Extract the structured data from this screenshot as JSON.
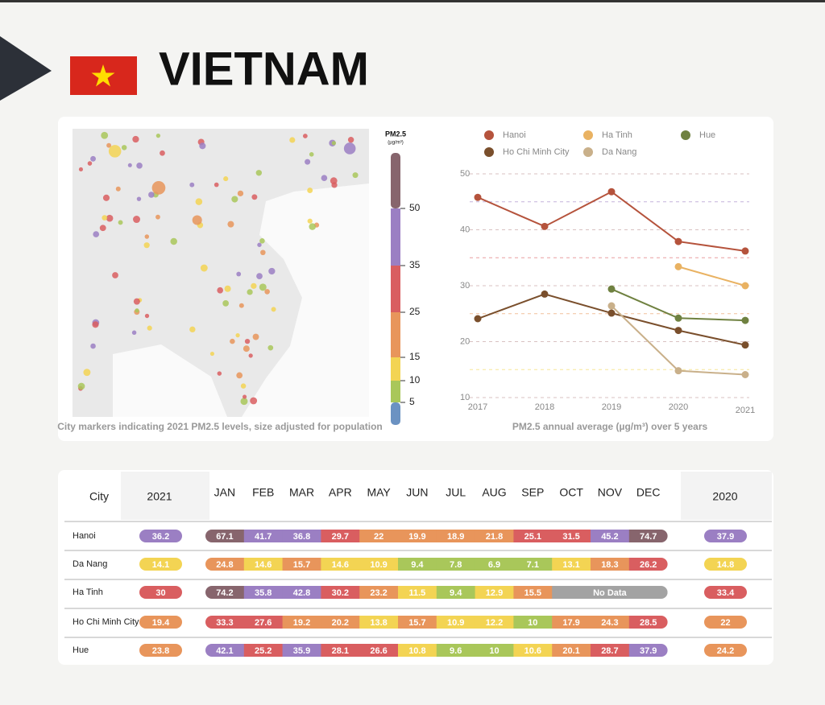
{
  "title": "VIETNAM",
  "map": {
    "caption": "City markers indicating 2021 PM2.5 levels, size adjusted for population",
    "legend": {
      "title": "PM2.5",
      "unit": "(µg/m³)",
      "ticks": [
        5,
        10,
        15,
        25,
        35,
        50
      ],
      "colors": [
        "#6b92c2",
        "#a9c75a",
        "#f3d453",
        "#e8955b",
        "#d95e60",
        "#9b7fc3",
        "#87656d"
      ]
    }
  },
  "chart_data": {
    "type": "line",
    "caption": "PM2.5 annual average (µg/m³) over 5 years",
    "x": [
      2017,
      2018,
      2019,
      2020,
      2021
    ],
    "xticks": [
      2017,
      2018,
      2019,
      2020,
      2021
    ],
    "ylim": [
      10,
      50
    ],
    "yticks": [
      10,
      20,
      30,
      40,
      50
    ],
    "minor_yticks": [
      15,
      25,
      35,
      45
    ],
    "grid": true,
    "series": [
      {
        "name": "Hanoi",
        "color": "#b5533c",
        "values": [
          45.8,
          40.6,
          46.8,
          37.9,
          36.2
        ]
      },
      {
        "name": "Ha Tinh",
        "color": "#e9b262",
        "values": [
          null,
          null,
          null,
          33.4,
          30
        ]
      },
      {
        "name": "Hue",
        "color": "#6f8140",
        "values": [
          null,
          null,
          29.4,
          24.2,
          23.8
        ]
      },
      {
        "name": "Ho Chi Minh City",
        "color": "#7a4f2c",
        "values": [
          24.1,
          28.5,
          25.1,
          22,
          19.4
        ]
      },
      {
        "name": "Da Nang",
        "color": "#c9b08a",
        "values": [
          null,
          null,
          26.4,
          14.8,
          14.1
        ]
      }
    ]
  },
  "table": {
    "headers": [
      "City",
      "2021",
      "JAN",
      "FEB",
      "MAR",
      "APR",
      "MAY",
      "JUN",
      "JUL",
      "AUG",
      "SEP",
      "OCT",
      "NOV",
      "DEC",
      "2020"
    ],
    "no_data_label": "No Data",
    "rows": [
      {
        "city": "Hanoi",
        "y2021": 36.2,
        "months": [
          67.1,
          41.7,
          36.8,
          29.7,
          22,
          19.9,
          18.9,
          21.8,
          25.1,
          31.5,
          45.2,
          74.7
        ],
        "y2020": 37.9
      },
      {
        "city": "Da Nang",
        "y2021": 14.1,
        "months": [
          24.8,
          14.6,
          15.7,
          14.6,
          10.9,
          9.4,
          7.8,
          6.9,
          7.1,
          13.1,
          18.3,
          26.2
        ],
        "y2020": 14.8
      },
      {
        "city": "Ha Tinh",
        "y2021": 30,
        "months": [
          74.2,
          35.8,
          42.8,
          30.2,
          23.2,
          11.5,
          9.4,
          12.9,
          15.5,
          null,
          null,
          null
        ],
        "y2020": 33.4
      },
      {
        "city": "Ho Chi Minh City",
        "y2021": 19.4,
        "months": [
          33.3,
          27.6,
          19.2,
          20.2,
          13.8,
          15.7,
          10.9,
          12.2,
          10,
          17.9,
          24.3,
          28.5
        ],
        "y2020": 22
      },
      {
        "city": "Hue",
        "y2021": 23.8,
        "months": [
          42.1,
          25.2,
          35.9,
          28.1,
          26.6,
          10.8,
          9.6,
          10,
          10.6,
          20.1,
          28.7,
          37.9
        ],
        "y2020": 24.2
      }
    ]
  }
}
